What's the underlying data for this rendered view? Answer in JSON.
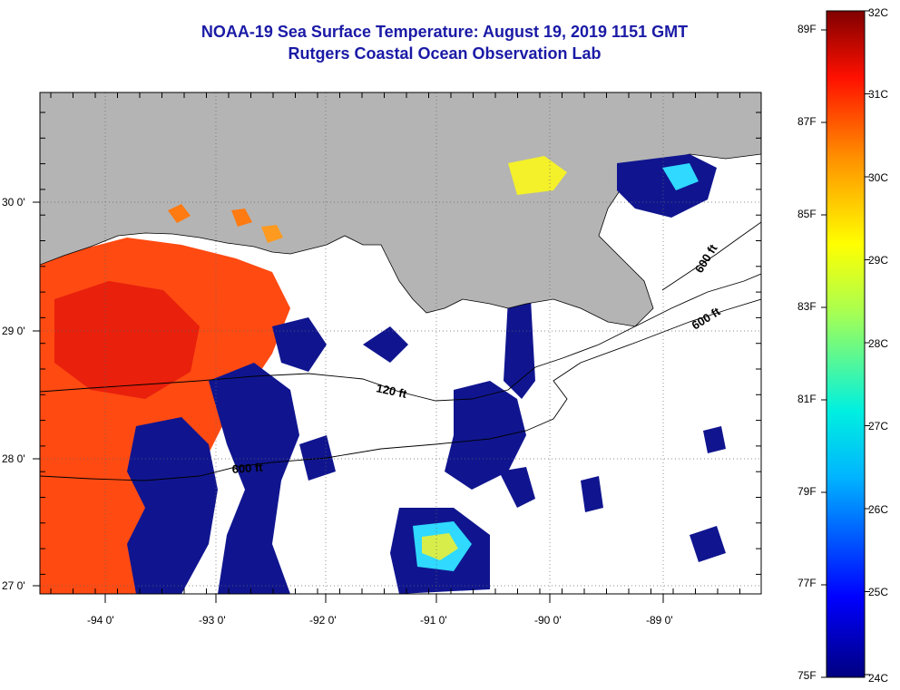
{
  "header": {
    "title": "NOAA-19 Sea Surface Temperature:  August 19, 2019 1151 GMT",
    "subtitle": "Rutgers Coastal Ocean Observation Lab"
  },
  "map": {
    "lon_ticks": [
      "-94 0'",
      "-93 0'",
      "-92 0'",
      "-91 0'",
      "-90 0'",
      "-89 0'"
    ],
    "lat_ticks": [
      "30 0'",
      "29 0'",
      "28 0'",
      "27 0'"
    ],
    "contours": [
      "120 ft",
      "600 ft",
      "600 ft",
      "600 ft"
    ],
    "colors": {
      "land": "#b4b4b4",
      "warm": "#ff4a12",
      "cool": "#10158f",
      "mid": "#2fd9ff",
      "yellow": "#f4f02a"
    }
  },
  "colorbar": {
    "celsius_labels": [
      "32C",
      "31C",
      "30C",
      "29C",
      "28C",
      "27C",
      "26C",
      "25C",
      "24C"
    ],
    "fahrenheit_labels": [
      "89F",
      "87F",
      "85F",
      "83F",
      "81F",
      "79F",
      "77F",
      "75F"
    ]
  }
}
